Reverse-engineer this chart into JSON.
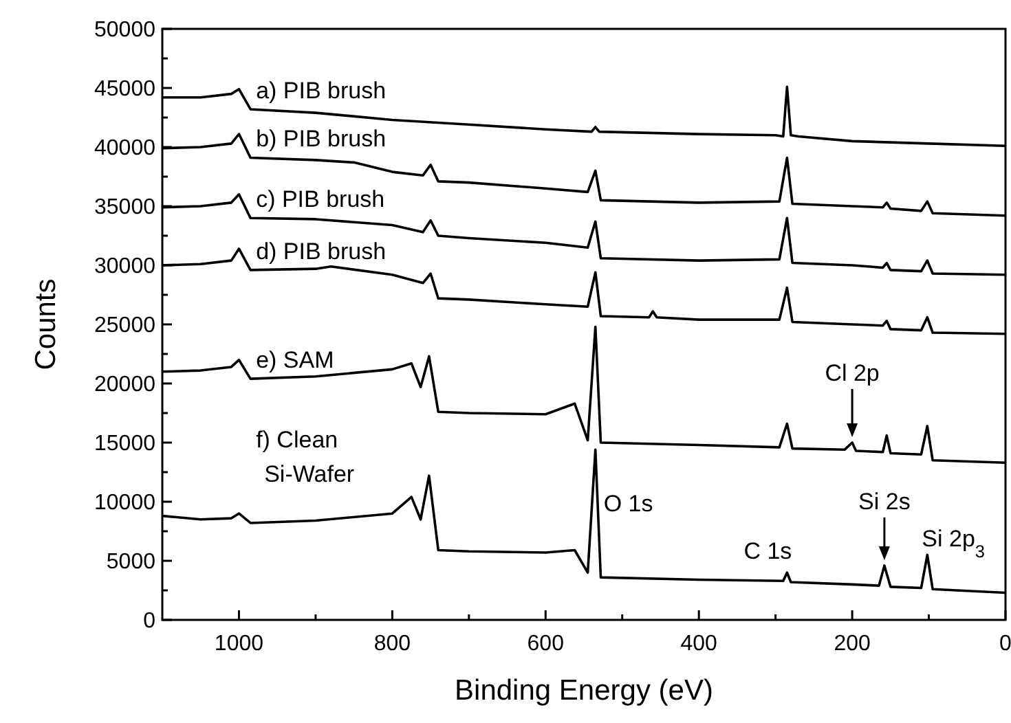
{
  "chart_data": {
    "type": "line",
    "xlabel": "Binding Energy (eV)",
    "ylabel": "Counts",
    "xlim": [
      1100,
      0
    ],
    "ylim": [
      0,
      50000
    ],
    "xticks": [
      {
        "value": 1000,
        "label": "1000"
      },
      {
        "value": 900,
        "label": null
      },
      {
        "value": 800,
        "label": "800"
      },
      {
        "value": 700,
        "label": null
      },
      {
        "value": 600,
        "label": "600"
      },
      {
        "value": 500,
        "label": null
      },
      {
        "value": 400,
        "label": "400"
      },
      {
        "value": 300,
        "label": null
      },
      {
        "value": 200,
        "label": "200"
      },
      {
        "value": 100,
        "label": null
      },
      {
        "value": 0,
        "label": "0"
      }
    ],
    "yticks": [
      0,
      {
        "value": 2500,
        "label": null
      },
      5000,
      {
        "value": 7500,
        "label": null
      },
      10000,
      {
        "value": 12500,
        "label": null
      },
      15000,
      {
        "value": 17500,
        "label": null
      },
      20000,
      {
        "value": 22500,
        "label": null
      },
      25000,
      {
        "value": 27500,
        "label": null
      },
      30000,
      {
        "value": 32500,
        "label": null
      },
      35000,
      {
        "value": 37500,
        "label": null
      },
      40000,
      {
        "value": 42500,
        "label": null
      },
      45000,
      {
        "value": 47500,
        "label": null
      },
      50000
    ],
    "grid": false,
    "line_style": "solid",
    "series": [
      {
        "name": "a) PIB brush",
        "color": "#000000",
        "x": [
          1100,
          1050,
          1010,
          1000,
          985,
          900,
          800,
          700,
          600,
          540,
          535,
          530,
          400,
          300,
          290,
          285,
          280,
          270,
          200,
          100,
          0
        ],
        "values": [
          44200,
          44200,
          44500,
          44900,
          43200,
          42900,
          42300,
          41900,
          41500,
          41300,
          41700,
          41300,
          41100,
          41000,
          40900,
          45100,
          41000,
          40900,
          40500,
          40300,
          40100
        ]
      },
      {
        "name": "b) PIB brush",
        "color": "#000000",
        "x": [
          1100,
          1050,
          1010,
          1000,
          985,
          900,
          850,
          800,
          760,
          750,
          740,
          700,
          600,
          545,
          535,
          528,
          400,
          295,
          285,
          278,
          200,
          160,
          155,
          150,
          110,
          102,
          95,
          0
        ],
        "values": [
          39900,
          40000,
          40300,
          41100,
          39100,
          38900,
          38700,
          37900,
          37600,
          38500,
          37100,
          37000,
          36500,
          36200,
          38000,
          35500,
          35300,
          35400,
          39100,
          35200,
          35000,
          34900,
          35300,
          34800,
          34600,
          35400,
          34400,
          34200
        ]
      },
      {
        "name": "c) PIB brush",
        "color": "#000000",
        "x": [
          1100,
          1050,
          1010,
          1000,
          985,
          900,
          800,
          760,
          750,
          740,
          700,
          600,
          545,
          535,
          528,
          400,
          295,
          285,
          278,
          200,
          160,
          155,
          150,
          110,
          102,
          95,
          0
        ],
        "values": [
          34900,
          35000,
          35300,
          36000,
          34000,
          33900,
          33400,
          32800,
          33800,
          32500,
          32300,
          31900,
          31500,
          33700,
          30600,
          30400,
          30500,
          34000,
          30200,
          30000,
          29800,
          30200,
          29600,
          29500,
          30400,
          29300,
          29200
        ]
      },
      {
        "name": "d) PIB brush",
        "color": "#000000",
        "x": [
          1100,
          1050,
          1010,
          1000,
          985,
          900,
          880,
          800,
          760,
          750,
          740,
          700,
          600,
          545,
          535,
          528,
          465,
          460,
          455,
          400,
          295,
          285,
          278,
          200,
          160,
          155,
          150,
          110,
          102,
          95,
          0
        ],
        "values": [
          30000,
          30100,
          30400,
          31400,
          29600,
          29700,
          29900,
          29200,
          28500,
          29300,
          27200,
          27100,
          26700,
          26500,
          29400,
          25700,
          25600,
          26100,
          25600,
          25400,
          25400,
          28100,
          25200,
          25000,
          24900,
          25300,
          24600,
          24500,
          25600,
          24300,
          24200
        ]
      },
      {
        "name": "e) SAM",
        "color": "#000000",
        "x": [
          1100,
          1050,
          1010,
          1000,
          985,
          900,
          800,
          775,
          763,
          752,
          740,
          700,
          600,
          562,
          545,
          535,
          528,
          400,
          295,
          285,
          278,
          210,
          200,
          195,
          160,
          155,
          150,
          110,
          102,
          95,
          0
        ],
        "values": [
          21000,
          21100,
          21400,
          22000,
          20400,
          20600,
          21200,
          21700,
          19700,
          22300,
          17600,
          17500,
          17400,
          18300,
          15200,
          24800,
          15000,
          14800,
          14600,
          16600,
          14500,
          14400,
          15000,
          14300,
          14200,
          15600,
          14100,
          14000,
          16400,
          13500,
          13300
        ]
      },
      {
        "name": "f) Clean Si-Wafer",
        "color": "#000000",
        "x": [
          1100,
          1050,
          1010,
          1000,
          985,
          900,
          800,
          775,
          763,
          752,
          740,
          700,
          600,
          562,
          545,
          535,
          528,
          400,
          290,
          285,
          280,
          200,
          165,
          158,
          150,
          110,
          102,
          95,
          0
        ],
        "values": [
          8800,
          8500,
          8600,
          9000,
          8200,
          8400,
          9000,
          10400,
          8500,
          12200,
          5900,
          5800,
          5700,
          5900,
          4000,
          14400,
          3600,
          3400,
          3300,
          4000,
          3200,
          3000,
          2900,
          4600,
          2800,
          2700,
          5500,
          2600,
          2300
        ]
      }
    ],
    "annotations": [
      {
        "text": "O 1s",
        "x": 535,
        "y": 14400
      },
      {
        "text": "C 1s",
        "x": 285,
        "y": 4000
      },
      {
        "text": "Cl 2p",
        "x": 200,
        "y": 15000
      },
      {
        "text": "Si 2s",
        "x": 158,
        "y": 4600
      },
      {
        "text": "Si 2p$_{3}$",
        "x": 102,
        "y": 5500
      }
    ]
  }
}
